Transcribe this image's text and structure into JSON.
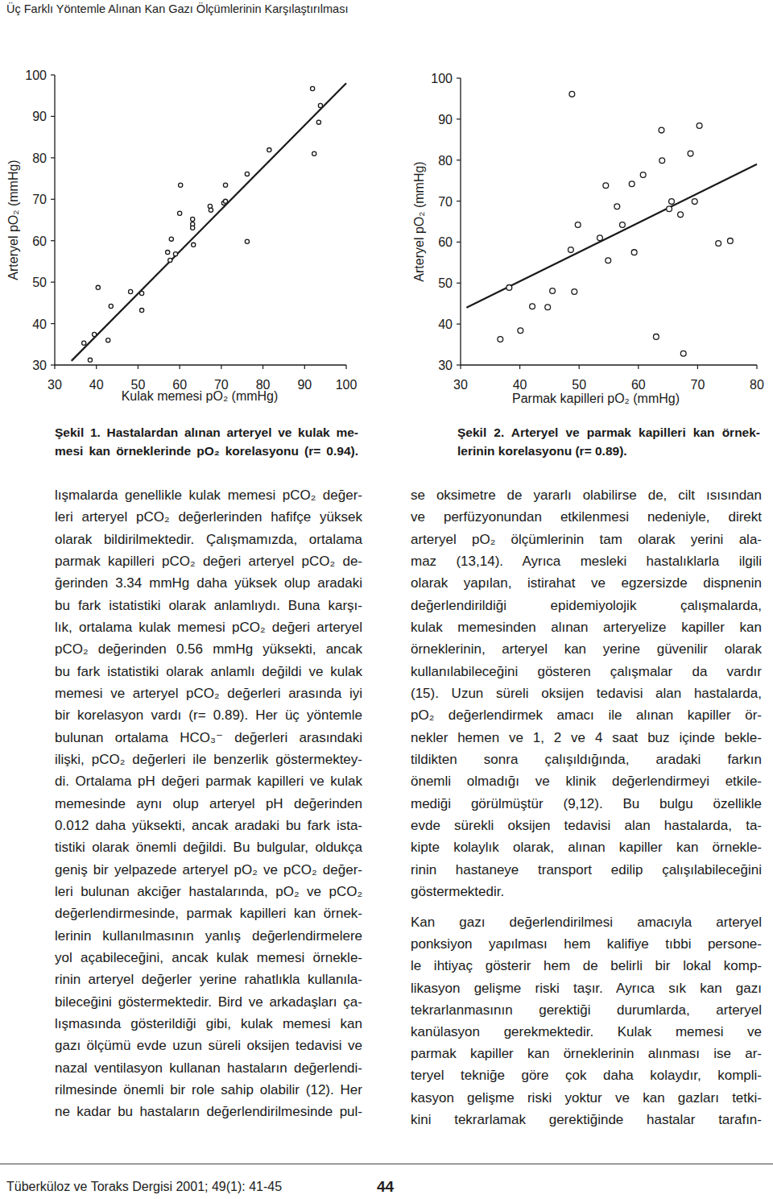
{
  "header": {
    "title": "Üç Farklı Yöntemle Alınan Kan Gazı Ölçümlerinin Karşılaştırılması"
  },
  "chart_data": [
    {
      "type": "scatter",
      "x_label": "Kulak memesi pO₂ (mmHg)",
      "y_label": "Arteryel pO₂ (mmHg)",
      "caption": [
        "Şekil 1. Hastalardan alınan arteryel ve kulak me-",
        "mesi kan örneklerinde pO₂ korelasyonu (r= 0.94)."
      ],
      "marker": "open-circle",
      "color": "#1a1a1a",
      "grid": false,
      "xlim": [
        30,
        100
      ],
      "ylim": [
        30,
        100
      ],
      "xticks": [
        30,
        40,
        50,
        60,
        70,
        80,
        90,
        100
      ],
      "yticks": [
        30,
        40,
        50,
        60,
        70,
        80,
        90,
        100
      ],
      "x": [
        37.0,
        38.5,
        39.5,
        40.4,
        42.8,
        43.5,
        48.2,
        50.9,
        50.9,
        57.1,
        57.7,
        58.0,
        59.0,
        60.0,
        60.2,
        63.1,
        63.1,
        63.1,
        63.3,
        67.3,
        67.5,
        70.6,
        71.0,
        71.0,
        76.2,
        76.2,
        81.5,
        91.9,
        92.3,
        93.4,
        93.8
      ],
      "values": [
        35.3,
        31.2,
        37.4,
        48.7,
        36.0,
        44.2,
        47.7,
        47.3,
        43.2,
        57.2,
        55.3,
        60.4,
        56.8,
        66.6,
        73.4,
        65.2,
        64.0,
        63.1,
        59.0,
        68.3,
        67.4,
        69.1,
        69.5,
        73.4,
        76.1,
        59.8,
        81.9,
        96.7,
        81.0,
        88.6,
        92.6
      ],
      "trend_line": {
        "x": [
          34,
          100
        ],
        "values": [
          31,
          98
        ]
      }
    },
    {
      "type": "scatter",
      "x_label": "Parmak kapilleri pO₂ (mmHg)",
      "y_label": "Arteryel pO₂ (mmHg)",
      "caption": [
        "Şekil 2. Arteryel ve parmak kapilleri kan örnek-",
        "lerinin korelasyonu (r= 0.89)."
      ],
      "marker": "open-circle",
      "color": "#1a1a1a",
      "grid": false,
      "xlim": [
        30,
        80
      ],
      "ylim": [
        30,
        100
      ],
      "xticks": [
        30,
        40,
        50,
        60,
        70,
        80
      ],
      "yticks": [
        30,
        40,
        50,
        60,
        70,
        80,
        90,
        100
      ],
      "x": [
        36.7,
        38.2,
        40.1,
        42.1,
        44.7,
        45.5,
        48.8,
        48.6,
        49.2,
        49.8,
        53.5,
        54.5,
        54.9,
        56.4,
        57.3,
        58.9,
        59.3,
        60.8,
        63.0,
        63.9,
        64.0,
        65.2,
        65.6,
        67.1,
        67.6,
        68.8,
        69.5,
        70.3,
        73.5,
        75.5
      ],
      "values": [
        36.3,
        48.9,
        38.4,
        44.3,
        44.1,
        48.1,
        96.1,
        58.1,
        47.9,
        64.2,
        61.0,
        73.8,
        55.5,
        68.7,
        64.2,
        74.2,
        57.5,
        76.4,
        36.9,
        87.3,
        79.9,
        68.1,
        69.9,
        66.7,
        32.8,
        81.6,
        69.9,
        88.4,
        59.7,
        60.3
      ],
      "trend_line": {
        "x": [
          31,
          80
        ],
        "values": [
          44,
          79
        ]
      }
    }
  ],
  "body": {
    "left_column": [
      [
        "lışmalarda genellikle kulak memesi pCO₂ değer-",
        "leri arteryel pCO₂ değerlerinden hafifçe yüksek",
        "olarak bildirilmektedir. Çalışmamızda, ortalama",
        "parmak kapilleri pCO₂ değeri arteryel pCO₂ de-",
        "ğerinden 3.34 mmHg daha yüksek olup aradaki",
        "bu fark istatistiki olarak anlamlıydı. Buna karşı-",
        "lık, ortalama kulak memesi pCO₂ değeri arteryel",
        "pCO₂ değerinden 0.56 mmHg yüksekti, ancak",
        "bu fark istatistiki olarak anlamlı değildi ve kulak",
        "memesi ve arteryel pCO₂ değerleri arasında iyi",
        "bir korelasyon vardı (r= 0.89). Her üç yöntemle",
        "bulunan ortalama HCO₃⁻ değerleri arasındaki",
        "ilişki, pCO₂ değerleri ile benzerlik göstermektey-",
        "di. Ortalama pH değeri parmak kapilleri ve kulak",
        "memesinde aynı olup arteryel pH değerinden",
        "0.012 daha yüksekti, ancak aradaki bu fark ista-",
        "tistiki olarak önemli değildi. Bu bulgular, oldukça",
        "geniş bir yelpazede arteryel pO₂ ve pCO₂ değer-",
        "leri bulunan akciğer hastalarında, pO₂ ve pCO₂",
        "değerlendirmesinde, parmak kapilleri kan örnek-",
        "lerinin kullanılmasının yanlış değerlendirmelere",
        "yol açabileceğini, ancak kulak memesi örnekle-",
        "rinin arteryel değerler yerine rahatlıkla kullanıla-",
        "bileceğini göstermektedir. Bird ve arkadaşları ça-",
        "lışmasında gösterildiği gibi, kulak memesi kan",
        "gazı ölçümü evde uzun süreli oksijen tedavisi ve",
        "nazal ventilasyon kullanan hastaların değerlendi-",
        "rilmesinde önemli bir role sahip olabilir (12). Her",
        "ne kadar bu hastaların değerlendirilmesinde pul-"
      ]
    ],
    "right_column": [
      [
        "se oksimetre de yararlı olabilirse de, cilt ısısından",
        "ve perfüzyonundan etkilenmesi nedeniyle, direkt",
        "arteryel pO₂ ölçümlerinin tam olarak yerini ala-",
        "maz (13,14). Ayrıca mesleki hastalıklarla ilgili",
        "olarak yapılan, istirahat ve egzersizde dispnenin",
        "değerlendirildiği epidemiyolojik çalışmalarda,",
        "kulak memesinden alınan arteryelize kapiller kan",
        "örneklerinin, arteryel kan yerine güvenilir olarak",
        "kullanılabileceğini gösteren çalışmalar da vardır",
        "(15). Uzun süreli oksijen tedavisi alan hastalarda,",
        "pO₂ değerlendirmek amacı ile alınan kapiller ör-",
        "nekler hemen ve 1, 2 ve 4 saat buz içinde bekle-",
        "tildikten sonra çalışıldığında, aradaki farkın",
        "önemli olmadığı ve klinik değerlendirmeyi etkile-",
        "mediği görülmüştür (9,12). Bu bulgu özellikle",
        "evde sürekli oksijen tedavisi alan hastalarda, ta-",
        "kipte kolaylık olarak, alınan kapiller kan örnekle-",
        "rinin hastaneye transport edilip çalışılabileceğini",
        "göstermektedir."
      ],
      [
        "Kan gazı değerlendirilmesi amacıyla arteryel",
        "ponksiyon yapılması hem kalifiye tıbbi persone-",
        "le ihtiyaç gösterir hem de belirli bir lokal komp-",
        "likasyon gelişme riski taşır. Ayrıca sık kan gazı",
        "tekrarlanmasının gerektiği durumlarda, arteryel",
        "kanülasyon gerekmektedir. Kulak memesi ve",
        "parmak kapiller kan örneklerinin alınması ise ar-",
        "teryel tekniğe göre çok daha kolaydır, kompli-",
        "kasyon gelişme riski yoktur ve kan gazları tetki-",
        "kini tekrarlamak gerektiğinde hastalar tarafın-"
      ]
    ]
  },
  "footer": {
    "journal": "Tüberküloz ve Toraks Dergisi 2001; 49(1): 41-45",
    "page": "44"
  }
}
